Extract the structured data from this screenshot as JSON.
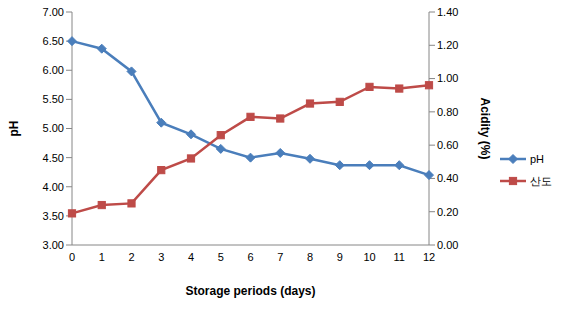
{
  "chart_data": {
    "type": "line",
    "xlabel": "Storage periods (days)",
    "ylabel": "pH",
    "y2label": "Acidity (%)",
    "categories": [
      "0",
      "1",
      "2",
      "3",
      "4",
      "5",
      "6",
      "7",
      "8",
      "9",
      "10",
      "11",
      "12"
    ],
    "series": [
      {
        "name": "pH",
        "color": "#4a7ebb",
        "marker": "diamond",
        "values": [
          6.5,
          6.37,
          5.98,
          5.1,
          4.9,
          4.65,
          4.5,
          4.58,
          4.48,
          4.37,
          4.37,
          4.37,
          4.2
        ]
      },
      {
        "name": "산도",
        "color": "#be4b48",
        "marker": "square",
        "axis": "y2",
        "values": [
          0.19,
          0.24,
          0.25,
          0.45,
          0.52,
          0.66,
          0.77,
          0.76,
          0.85,
          0.86,
          0.95,
          0.94,
          0.96
        ]
      }
    ],
    "ylim": [
      3,
      7
    ],
    "yticks": [
      {
        "value": 3,
        "label": "3.00"
      },
      {
        "value": 3.5,
        "label": "3.50"
      },
      {
        "value": 4,
        "label": "4.00"
      },
      {
        "value": 4.5,
        "label": "4.50"
      },
      {
        "value": 5,
        "label": "5.00"
      },
      {
        "value": 5.5,
        "label": "5.50"
      },
      {
        "value": 6,
        "label": "6.00"
      },
      {
        "value": 6.5,
        "label": "6.50"
      },
      {
        "value": 7,
        "label": "7.00"
      }
    ],
    "y2lim": [
      0,
      1.4
    ],
    "y2ticks": [
      {
        "value": 0,
        "label": "0.00"
      },
      {
        "value": 0.2,
        "label": "0.20"
      },
      {
        "value": 0.4,
        "label": "0.40"
      },
      {
        "value": 0.6,
        "label": "0.60"
      },
      {
        "value": 0.8,
        "label": "0.80"
      },
      {
        "value": 1,
        "label": "1.00"
      },
      {
        "value": 1.2,
        "label": "1.20"
      },
      {
        "value": 1.4,
        "label": "1.40"
      }
    ],
    "grid": false,
    "legend": "right"
  }
}
